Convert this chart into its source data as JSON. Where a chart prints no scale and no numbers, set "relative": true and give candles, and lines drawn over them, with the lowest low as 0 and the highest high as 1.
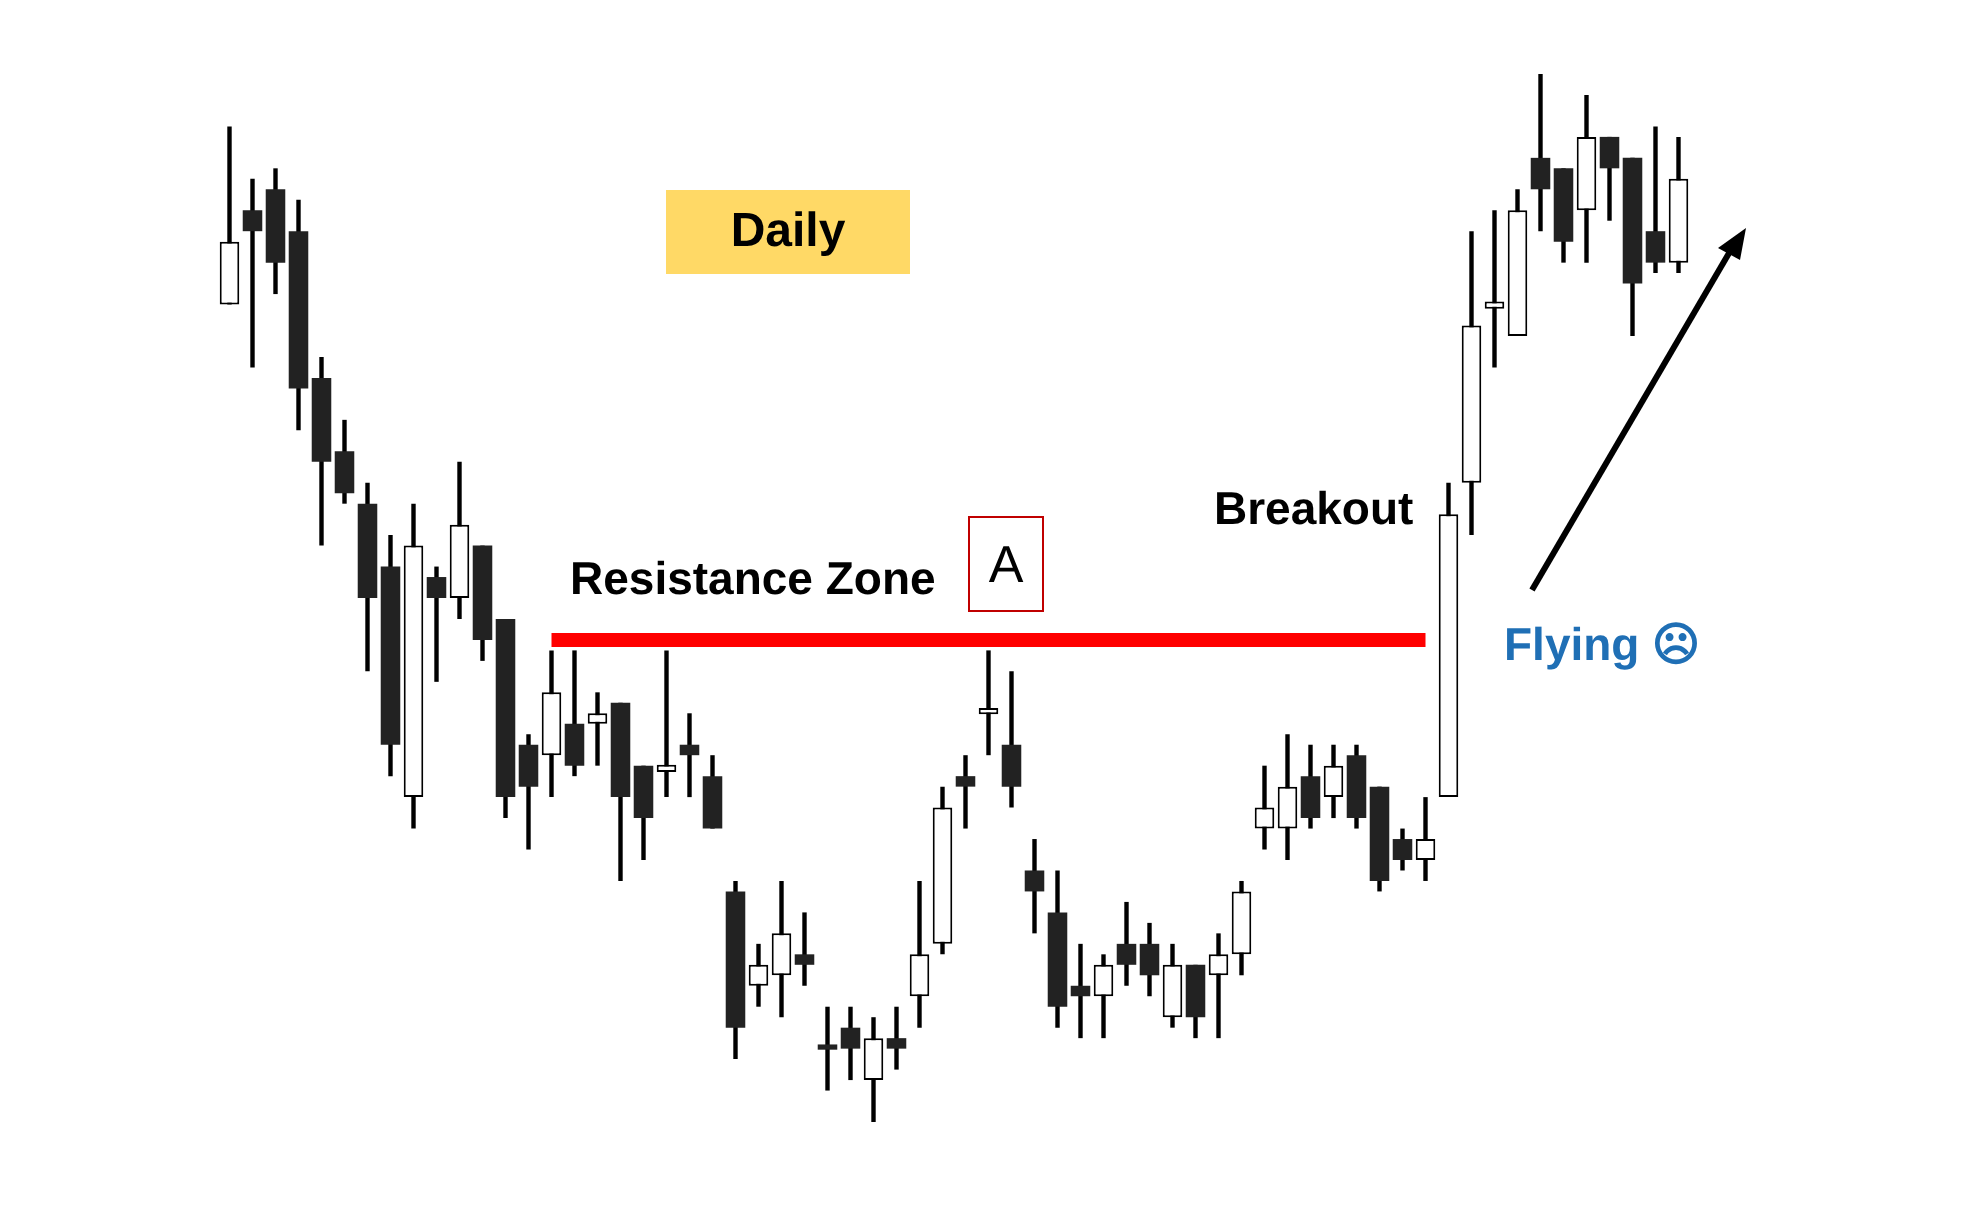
{
  "chart_data": {
    "type": "candlestick",
    "title": "Daily",
    "relative": true,
    "categories": [
      null,
      null,
      null,
      null,
      null,
      null,
      null,
      null,
      null,
      null,
      null,
      null,
      null,
      null,
      null,
      null,
      null,
      null,
      null,
      null,
      null,
      null,
      null,
      null,
      null,
      null,
      null,
      null,
      null,
      null,
      null,
      null,
      null,
      null,
      null,
      null,
      null,
      null,
      null,
      null,
      null,
      null,
      null,
      null,
      null,
      null,
      null,
      null,
      null,
      null,
      null,
      null,
      null,
      null,
      null,
      null,
      null,
      null,
      null,
      null,
      null,
      null,
      null,
      null
    ],
    "ohlc": [
      [
        0.78,
        0.95,
        0.78,
        0.84
      ],
      [
        0.87,
        0.9,
        0.72,
        0.85
      ],
      [
        0.89,
        0.91,
        0.79,
        0.82
      ],
      [
        0.85,
        0.88,
        0.66,
        0.7
      ],
      [
        0.71,
        0.73,
        0.55,
        0.63
      ],
      [
        0.64,
        0.67,
        0.59,
        0.6
      ],
      [
        0.59,
        0.61,
        0.43,
        0.5
      ],
      [
        0.53,
        0.56,
        0.33,
        0.36
      ],
      [
        0.31,
        0.59,
        0.28,
        0.55
      ],
      [
        0.52,
        0.53,
        0.42,
        0.5
      ],
      [
        0.5,
        0.63,
        0.48,
        0.57
      ],
      [
        0.55,
        0.55,
        0.44,
        0.46
      ],
      [
        0.48,
        0.48,
        0.29,
        0.31
      ],
      [
        0.36,
        0.37,
        0.26,
        0.32
      ],
      [
        0.35,
        0.45,
        0.31,
        0.41
      ],
      [
        0.38,
        0.45,
        0.33,
        0.34
      ],
      [
        0.38,
        0.41,
        0.34,
        0.39
      ],
      [
        0.4,
        0.4,
        0.23,
        0.31
      ],
      [
        0.34,
        0.34,
        0.25,
        0.29
      ],
      [
        0.334,
        0.45,
        0.31,
        0.341
      ],
      [
        0.36,
        0.39,
        0.31,
        0.35
      ],
      [
        0.33,
        0.35,
        0.28,
        0.28
      ],
      [
        0.22,
        0.23,
        0.06,
        0.09
      ],
      [
        0.13,
        0.17,
        0.11,
        0.15
      ],
      [
        0.14,
        0.23,
        0.1,
        0.18
      ],
      [
        0.16,
        0.2,
        0.13,
        0.15
      ],
      [
        0.074,
        0.11,
        0.03,
        0.069
      ],
      [
        0.09,
        0.11,
        0.04,
        0.07
      ],
      [
        0.04,
        0.1,
        0,
        0.08
      ],
      [
        0.08,
        0.11,
        0.05,
        0.07
      ],
      [
        0.12,
        0.23,
        0.09,
        0.16
      ],
      [
        0.17,
        0.32,
        0.16,
        0.3
      ],
      [
        0.33,
        0.35,
        0.28,
        0.32
      ],
      [
        0.389,
        0.45,
        0.35,
        0.395
      ],
      [
        0.36,
        0.43,
        0.3,
        0.32
      ],
      [
        0.24,
        0.27,
        0.18,
        0.22
      ],
      [
        0.2,
        0.24,
        0.09,
        0.11
      ],
      [
        0.13,
        0.17,
        0.08,
        0.12
      ],
      [
        0.12,
        0.16,
        0.08,
        0.15
      ],
      [
        0.17,
        0.21,
        0.13,
        0.15
      ],
      [
        0.17,
        0.19,
        0.12,
        0.14
      ],
      [
        0.1,
        0.17,
        0.09,
        0.15
      ],
      [
        0.15,
        0.15,
        0.08,
        0.1
      ],
      [
        0.14,
        0.18,
        0.08,
        0.16
      ],
      [
        0.16,
        0.23,
        0.14,
        0.22
      ],
      [
        0.28,
        0.34,
        0.26,
        0.3
      ],
      [
        0.28,
        0.37,
        0.25,
        0.32
      ],
      [
        0.33,
        0.36,
        0.28,
        0.29
      ],
      [
        0.31,
        0.36,
        0.29,
        0.34
      ],
      [
        0.35,
        0.36,
        0.28,
        0.29
      ],
      [
        0.32,
        0.32,
        0.22,
        0.23
      ],
      [
        0.27,
        0.28,
        0.24,
        0.25
      ],
      [
        0.25,
        0.31,
        0.23,
        0.27
      ],
      [
        0.31,
        0.61,
        0.31,
        0.58
      ],
      [
        0.61,
        0.85,
        0.56,
        0.76
      ],
      [
        0.776,
        0.87,
        0.72,
        0.783
      ],
      [
        0.75,
        0.89,
        0.75,
        0.87
      ],
      [
        0.92,
        1,
        0.85,
        0.89
      ],
      [
        0.91,
        0.91,
        0.82,
        0.84
      ],
      [
        0.87,
        0.98,
        0.82,
        0.94
      ],
      [
        0.94,
        0.94,
        0.86,
        0.91
      ],
      [
        0.92,
        0.92,
        0.75,
        0.8
      ],
      [
        0.85,
        0.95,
        0.81,
        0.82
      ],
      [
        0.82,
        0.94,
        0.81,
        0.9
      ]
    ],
    "series": [
      {
        "type": "line",
        "color": "#ff0000",
        "values": [
          null,
          null,
          null,
          null,
          null,
          null,
          null,
          null,
          null,
          null,
          null,
          null,
          null,
          null,
          0.46,
          0.46,
          0.46,
          0.46,
          0.46,
          0.46,
          0.46,
          0.46,
          0.46,
          0.46,
          0.46,
          0.46,
          0.46,
          0.46,
          0.46,
          0.46,
          0.46,
          0.46,
          0.46,
          0.46,
          0.46,
          0.46,
          0.46,
          0.46,
          0.46,
          0.46,
          0.46,
          0.46,
          0.46,
          0.46,
          0.46,
          0.46,
          0.46,
          0.46,
          0.46,
          0.46,
          0.46,
          0.46,
          0.46,
          null,
          null,
          null,
          null,
          null,
          null,
          null,
          null,
          null,
          null,
          null
        ]
      }
    ],
    "annotations": [
      "Resistance Zone",
      "A",
      "Breakout",
      "Flying ☹"
    ]
  }
}
